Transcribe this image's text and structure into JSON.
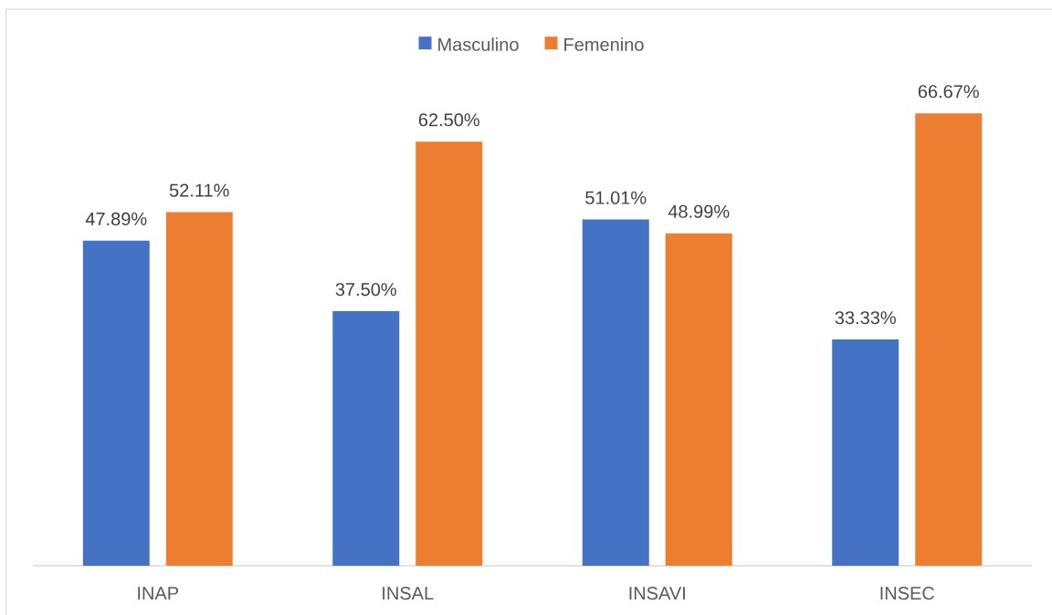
{
  "chart_data": {
    "type": "bar",
    "categories": [
      "INAP",
      "INSAL",
      "INSAVI",
      "INSEC"
    ],
    "series": [
      {
        "name": "Masculino",
        "color": "#4472c4",
        "values": [
          47.89,
          37.5,
          51.01,
          33.33
        ],
        "value_labels": [
          "47.89%",
          "37.50%",
          "51.01%",
          "33.33%"
        ]
      },
      {
        "name": "Femenino",
        "color": "#ed7d31",
        "values": [
          52.11,
          62.5,
          48.99,
          66.67
        ],
        "value_labels": [
          "52.11%",
          "62.50%",
          "48.99%",
          "66.67%"
        ]
      }
    ],
    "legend": "top",
    "tick_labels": "x"
  }
}
